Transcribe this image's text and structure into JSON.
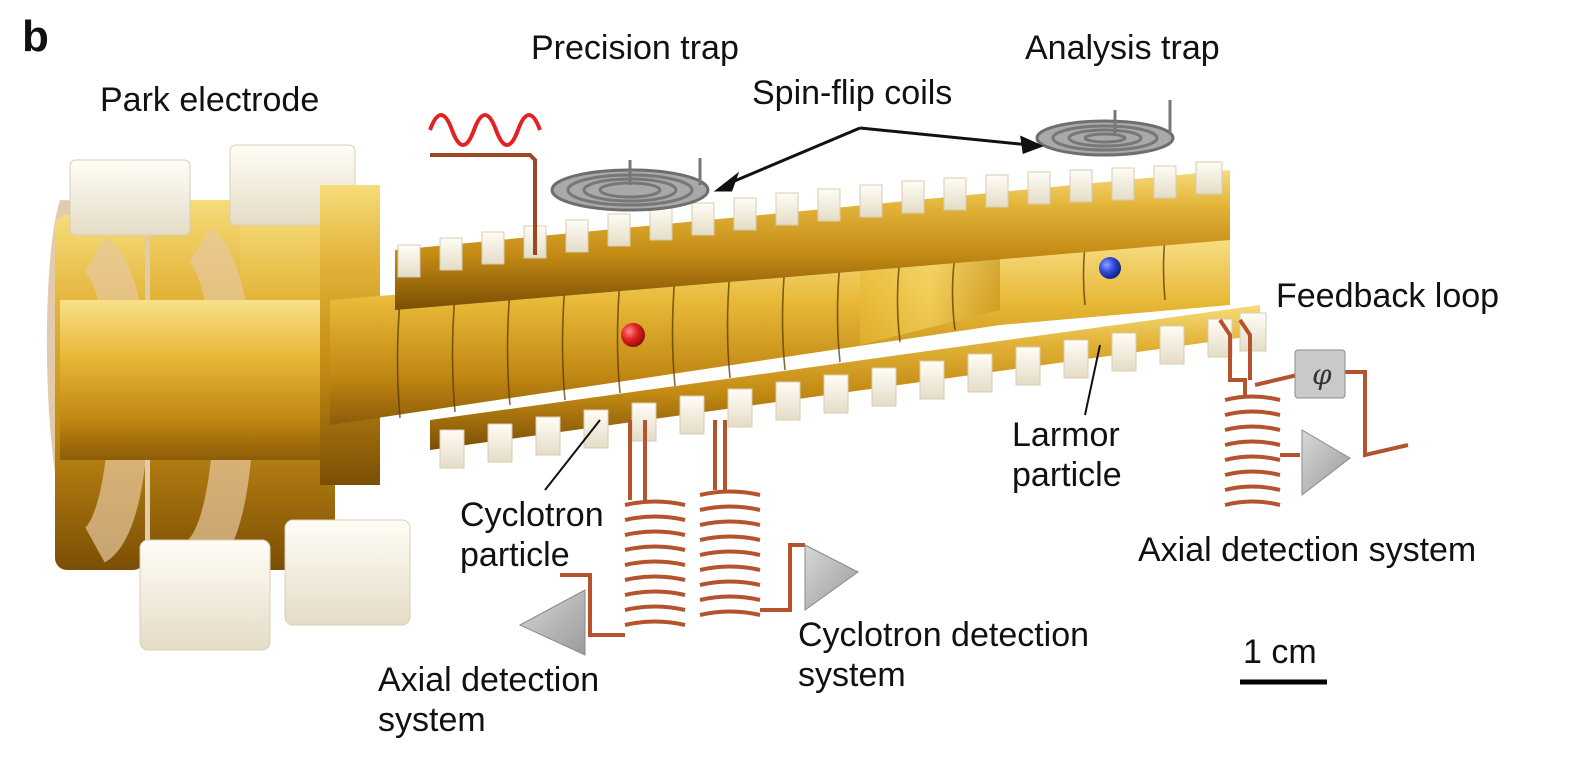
{
  "figure": {
    "panel_letter": "b",
    "labels": {
      "precision_trap": "Precision trap",
      "analysis_trap": "Analysis trap",
      "park_electrode": "Park electrode",
      "spin_flip_coils": "Spin-flip coils",
      "feedback_loop": "Feedback loop",
      "larmor_particle": "Larmor particle",
      "cyclotron_particle": "Cyclotron particle",
      "axial_detection_right": "Axial detection system",
      "axial_detection_left": "Axial detection system",
      "cyclotron_detection": "Cyclotron detection system",
      "phase_symbol": "φ",
      "scale_bar": "1 cm"
    },
    "colors": {
      "gold": "#d9a320",
      "gold_light": "#f3d46a",
      "gold_dark": "#8a5d06",
      "ceramic": "#f4efe2",
      "copper": "#b5532c",
      "cyclotron_particle": "#e02020",
      "larmor_particle": "#2d48d8",
      "rf_wave": "#e52222",
      "triangle": "#bdbdbd"
    }
  }
}
